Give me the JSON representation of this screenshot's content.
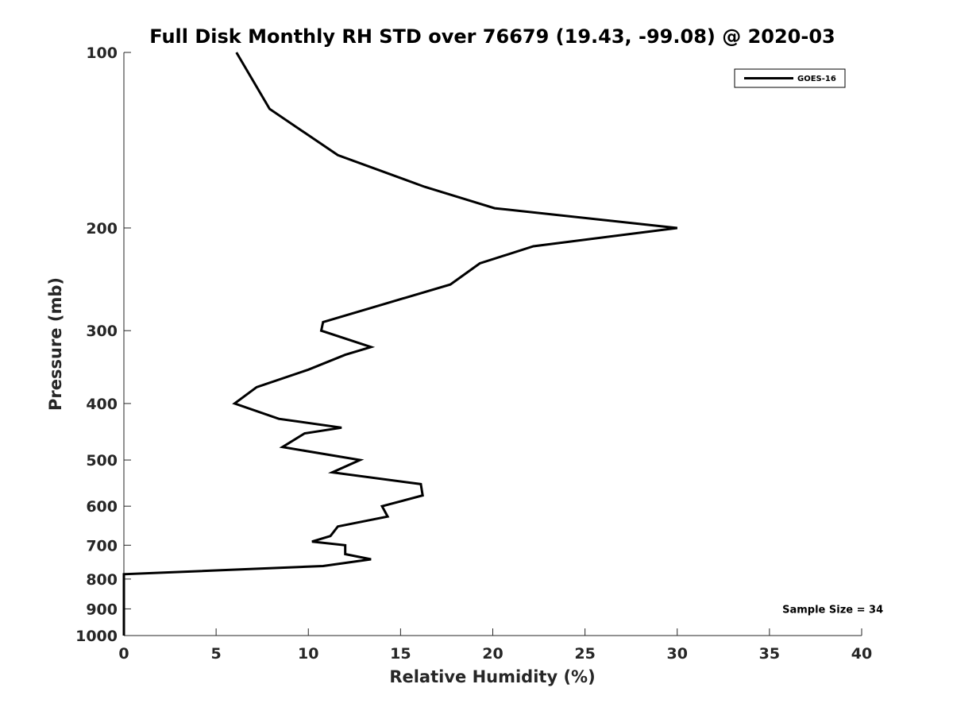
{
  "chart_data": {
    "type": "line",
    "title": "Full Disk Monthly RH STD over 76679 (19.43, -99.08) @ 2020-03",
    "xlabel": "Relative Humidity (%)",
    "ylabel": "Pressure (mb)",
    "xlim": [
      0,
      40
    ],
    "ylim": [
      100,
      1000
    ],
    "y_scale": "log",
    "y_reversed": true,
    "x_ticks": [
      0,
      5,
      10,
      15,
      20,
      25,
      30,
      35,
      40
    ],
    "y_ticks": [
      100,
      200,
      300,
      400,
      500,
      600,
      700,
      800,
      900,
      1000
    ],
    "x_tick_labels": [
      "0",
      "5",
      "10",
      "15",
      "20",
      "25",
      "30",
      "35",
      "40"
    ],
    "y_tick_labels": [
      "100",
      "200",
      "300",
      "400",
      "500",
      "600",
      "700",
      "800",
      "900",
      "1000"
    ],
    "grid": false,
    "legend_position": "top-right",
    "series": [
      {
        "name": "GOES-16",
        "color": "#000000",
        "points": [
          {
            "x": 6.1,
            "p": 100
          },
          {
            "x": 7.9,
            "p": 125
          },
          {
            "x": 11.6,
            "p": 150
          },
          {
            "x": 16.3,
            "p": 170
          },
          {
            "x": 20.1,
            "p": 185
          },
          {
            "x": 30.0,
            "p": 200
          },
          {
            "x": 22.2,
            "p": 215
          },
          {
            "x": 19.3,
            "p": 230
          },
          {
            "x": 17.7,
            "p": 250
          },
          {
            "x": 10.8,
            "p": 290
          },
          {
            "x": 10.7,
            "p": 300
          },
          {
            "x": 13.4,
            "p": 320
          },
          {
            "x": 12.0,
            "p": 330
          },
          {
            "x": 10.0,
            "p": 350
          },
          {
            "x": 7.2,
            "p": 375
          },
          {
            "x": 6.0,
            "p": 400
          },
          {
            "x": 8.4,
            "p": 425
          },
          {
            "x": 11.8,
            "p": 440
          },
          {
            "x": 9.8,
            "p": 450
          },
          {
            "x": 8.6,
            "p": 475
          },
          {
            "x": 12.8,
            "p": 500
          },
          {
            "x": 11.3,
            "p": 525
          },
          {
            "x": 16.1,
            "p": 550
          },
          {
            "x": 16.2,
            "p": 575
          },
          {
            "x": 14.0,
            "p": 600
          },
          {
            "x": 14.3,
            "p": 625
          },
          {
            "x": 11.6,
            "p": 650
          },
          {
            "x": 11.2,
            "p": 675
          },
          {
            "x": 10.2,
            "p": 690
          },
          {
            "x": 12.0,
            "p": 700
          },
          {
            "x": 12.0,
            "p": 725
          },
          {
            "x": 13.4,
            "p": 740
          },
          {
            "x": 10.8,
            "p": 760
          },
          {
            "x": 0,
            "p": 785
          },
          {
            "x": 0,
            "p": 800
          },
          {
            "x": 0,
            "p": 900
          },
          {
            "x": 0,
            "p": 1000
          }
        ]
      }
    ],
    "annotations": [
      {
        "text": "Sample Size = 34",
        "x": 35.7,
        "p": 900
      }
    ]
  }
}
